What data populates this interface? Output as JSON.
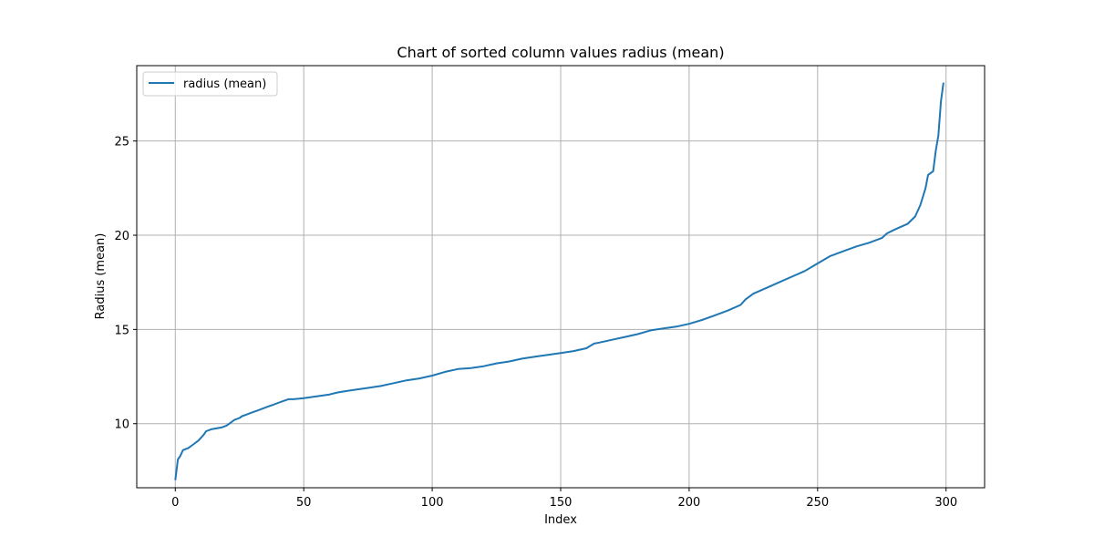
{
  "chart_data": {
    "type": "line",
    "title": "Chart of sorted column values radius (mean)",
    "xlabel": "Index",
    "ylabel": "Radius (mean)",
    "xlim": [
      -15,
      315
    ],
    "ylim": [
      6.6,
      29.0
    ],
    "xticks": [
      0,
      50,
      100,
      150,
      200,
      250,
      300
    ],
    "yticks": [
      10,
      25,
      20,
      15
    ],
    "grid": true,
    "legend_position": "top-left",
    "series": [
      {
        "name": "radius (mean)",
        "color": "#1f77b4",
        "x": [
          0,
          1,
          2,
          3,
          5,
          7,
          9,
          11,
          12,
          14,
          16,
          18,
          20,
          22,
          23,
          25,
          26,
          28,
          30,
          32,
          34,
          36,
          38,
          40,
          42,
          44,
          46,
          50,
          55,
          60,
          63,
          65,
          70,
          75,
          80,
          85,
          90,
          95,
          100,
          105,
          110,
          115,
          120,
          125,
          130,
          135,
          140,
          145,
          150,
          155,
          160,
          163,
          165,
          170,
          175,
          180,
          185,
          190,
          195,
          200,
          205,
          210,
          215,
          220,
          222,
          225,
          230,
          235,
          240,
          245,
          250,
          255,
          260,
          265,
          270,
          275,
          277,
          280,
          285,
          288,
          290,
          292,
          293,
          295,
          296,
          297,
          298,
          299
        ],
        "y": [
          7.0,
          8.1,
          8.3,
          8.6,
          8.7,
          8.9,
          9.1,
          9.4,
          9.6,
          9.7,
          9.75,
          9.8,
          9.9,
          10.1,
          10.2,
          10.3,
          10.4,
          10.5,
          10.6,
          10.7,
          10.8,
          10.9,
          11.0,
          11.1,
          11.2,
          11.3,
          11.3,
          11.35,
          11.45,
          11.55,
          11.65,
          11.7,
          11.8,
          11.9,
          12.0,
          12.15,
          12.3,
          12.4,
          12.55,
          12.75,
          12.9,
          12.95,
          13.05,
          13.2,
          13.3,
          13.45,
          13.55,
          13.65,
          13.75,
          13.85,
          14.0,
          14.25,
          14.3,
          14.45,
          14.6,
          14.75,
          14.95,
          15.05,
          15.15,
          15.3,
          15.5,
          15.75,
          16.0,
          16.3,
          16.6,
          16.9,
          17.2,
          17.5,
          17.8,
          18.1,
          18.5,
          18.9,
          19.15,
          19.4,
          19.6,
          19.85,
          20.1,
          20.3,
          20.6,
          21.0,
          21.6,
          22.5,
          23.2,
          23.4,
          24.5,
          25.3,
          27.1,
          28.1
        ]
      }
    ]
  }
}
